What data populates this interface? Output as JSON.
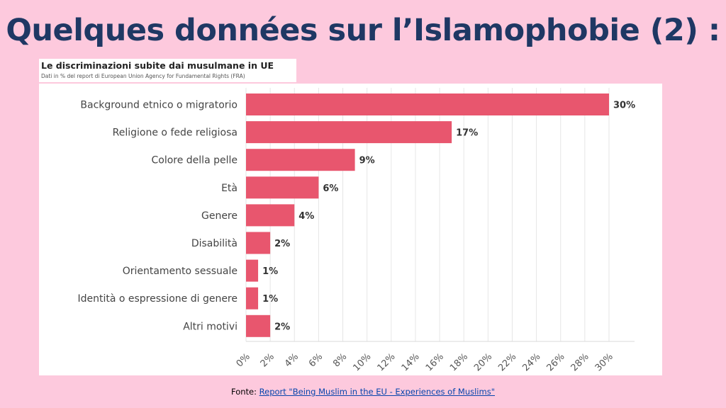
{
  "slide": {
    "title": "Quelques données sur l’Islamophobie (2) :"
  },
  "source": {
    "prefix": "Fonte:",
    "link_text": "Report \"Being Muslim in the EU - Experiences of Muslims\""
  },
  "colors": {
    "background": "#fdc9dd",
    "title": "#1f3864",
    "bar": "#e8566e",
    "link": "#0645ad"
  },
  "chart_data": {
    "type": "bar",
    "orientation": "horizontal",
    "title": "Le discriminazioni subite dai musulmane in UE",
    "subtitle": "Dati in % del report di European Union Agency for Fundamental Rights (FRA)",
    "categories": [
      "Background etnico o migratorio",
      "Religione o fede religiosa",
      "Colore della pelle",
      "Età",
      "Genere",
      "Disabilità",
      "Orientamento sessuale",
      "Identità o espressione di genere",
      "Altri motivi"
    ],
    "values": [
      30,
      17,
      9,
      6,
      4,
      2,
      1,
      1,
      2
    ],
    "value_labels": [
      "30%",
      "17%",
      "9%",
      "6%",
      "4%",
      "2%",
      "1%",
      "1%",
      "2%"
    ],
    "x_ticks": [
      "0%",
      "2%",
      "4%",
      "6%",
      "8%",
      "10%",
      "12%",
      "14%",
      "16%",
      "18%",
      "20%",
      "22%",
      "24%",
      "26%",
      "28%",
      "30%"
    ],
    "xlim": [
      0,
      30
    ],
    "grid": true,
    "legend": "none"
  }
}
